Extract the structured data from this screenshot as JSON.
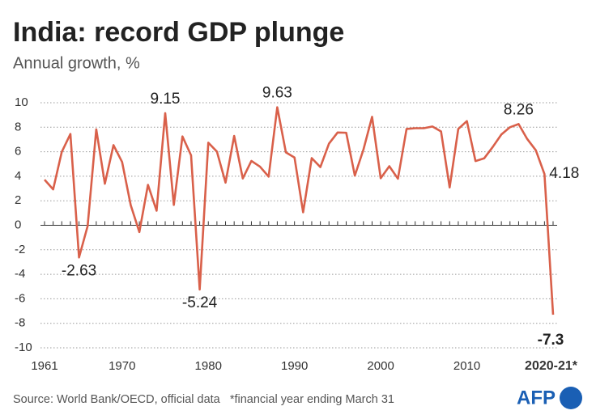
{
  "chart_data": {
    "type": "line",
    "title": "India: record GDP plunge",
    "subtitle": "Annual growth, %",
    "source": "Source: World Bank/OECD, official data   *financial year ending March 31",
    "logo": "AFP",
    "x": [
      1961,
      1962,
      1963,
      1964,
      1965,
      1966,
      1967,
      1968,
      1969,
      1970,
      1971,
      1972,
      1973,
      1974,
      1975,
      1976,
      1977,
      1978,
      1979,
      1980,
      1981,
      1982,
      1983,
      1984,
      1985,
      1986,
      1987,
      1988,
      1989,
      1990,
      1991,
      1992,
      1993,
      1994,
      1995,
      1996,
      1997,
      1998,
      1999,
      2000,
      2001,
      2002,
      2003,
      2004,
      2005,
      2006,
      2007,
      2008,
      2009,
      2010,
      2011,
      2012,
      2013,
      2014,
      2015,
      2016,
      2017,
      2018,
      2019,
      2020
    ],
    "series": [
      {
        "name": "Annual growth",
        "color": "#d9604a",
        "values": [
          3.72,
          2.93,
          5.99,
          7.45,
          -2.63,
          -0.06,
          7.83,
          3.39,
          6.54,
          5.16,
          1.64,
          -0.55,
          3.3,
          1.19,
          9.15,
          1.66,
          7.25,
          5.71,
          -5.24,
          6.74,
          6.01,
          3.48,
          7.29,
          3.82,
          5.25,
          4.78,
          3.97,
          9.63,
          5.95,
          5.53,
          1.06,
          5.48,
          4.75,
          6.66,
          7.57,
          7.55,
          4.05,
          6.18,
          8.85,
          3.84,
          4.82,
          3.8,
          7.86,
          7.92,
          7.92,
          8.06,
          7.66,
          3.09,
          7.86,
          8.5,
          5.24,
          5.46,
          6.39,
          7.41,
          8.0,
          8.26,
          7.04,
          6.12,
          4.18,
          -7.3
        ]
      }
    ],
    "labeled_x": [
      1965,
      1975,
      1979,
      1988,
      2016,
      2019,
      2020
    ],
    "xlim": [
      1961,
      2020
    ],
    "xticks": [
      1961,
      1970,
      1980,
      1990,
      2000,
      2010,
      {
        "value": 2020,
        "label": "2020-21*"
      }
    ],
    "ylim": [
      -10,
      10
    ],
    "yticks": [
      -10,
      -8,
      -6,
      -4,
      -2,
      0,
      2,
      4,
      6,
      8,
      10
    ],
    "grid": true
  }
}
